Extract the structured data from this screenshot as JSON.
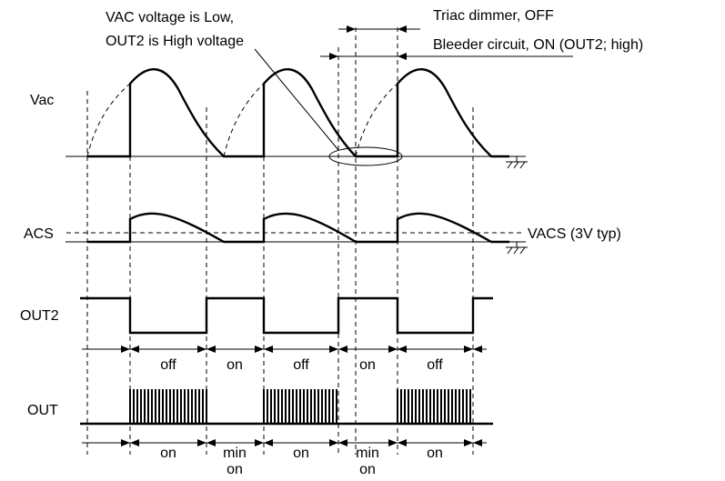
{
  "annotations": {
    "note_line1": "VAC voltage is Low,",
    "note_line2": "OUT2 is High voltage",
    "triac": "Triac dimmer, OFF",
    "bleeder": "Bleeder circuit, ON (OUT2; high)",
    "vacs": "VACS (3V typ)"
  },
  "signals": {
    "vac": "Vac",
    "acs": "ACS",
    "out2": "OUT2",
    "out": "OUT"
  },
  "out2_states": [
    "off",
    "on",
    "off",
    "on",
    "off"
  ],
  "out_states": [
    {
      "l1": "on",
      "l2": ""
    },
    {
      "l1": "min",
      "l2": "on"
    },
    {
      "l1": "on",
      "l2": ""
    },
    {
      "l1": "min",
      "l2": "on"
    },
    {
      "l1": "on",
      "l2": ""
    }
  ]
}
